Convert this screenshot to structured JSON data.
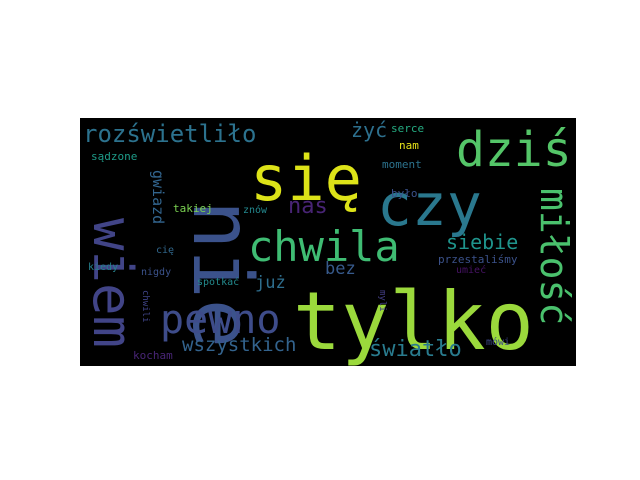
{
  "words": [
    {
      "text": "tylko",
      "color": "#9bd93c",
      "weight": 1.0
    },
    {
      "text": "nie",
      "color": "#3b528b",
      "weight": 0.98,
      "rotated": true
    },
    {
      "text": "się",
      "color": "#dde318",
      "weight": 0.95
    },
    {
      "text": "czy",
      "color": "#2a788e",
      "weight": 0.9
    },
    {
      "text": "wiem",
      "color": "#414487",
      "weight": 0.85,
      "rotated": true
    },
    {
      "text": "dziś",
      "color": "#54c568",
      "weight": 0.75
    },
    {
      "text": "chwila",
      "color": "#3fbc73",
      "weight": 0.7
    },
    {
      "text": "miłość",
      "color": "#4ac16d",
      "weight": 0.7,
      "rotated": true
    },
    {
      "text": "pewno",
      "color": "#3e4c8a",
      "weight": 0.65
    },
    {
      "text": "rozświetliło",
      "color": "#2c728e",
      "weight": 0.5
    },
    {
      "text": "światło",
      "color": "#297b8e",
      "weight": 0.45
    },
    {
      "text": "wszystkich",
      "color": "#33638d",
      "weight": 0.4
    },
    {
      "text": "nas",
      "color": "#482475",
      "weight": 0.4
    },
    {
      "text": "siebie",
      "color": "#1f948c",
      "weight": 0.4
    },
    {
      "text": "żyć",
      "color": "#2d708e",
      "weight": 0.35
    },
    {
      "text": "gwiazd",
      "color": "#32658e",
      "weight": 0.3,
      "rotated": true
    },
    {
      "text": "już",
      "color": "#2e6e8e",
      "weight": 0.3
    },
    {
      "text": "bez",
      "color": "#375a8c",
      "weight": 0.3
    },
    {
      "text": "sądzone",
      "color": "#1e9c89",
      "weight": 0.2
    },
    {
      "text": "serce",
      "color": "#25ac82",
      "weight": 0.2
    },
    {
      "text": "nam",
      "color": "#e7e419",
      "weight": 0.2
    },
    {
      "text": "moment",
      "color": "#2c738e",
      "weight": 0.2
    },
    {
      "text": "było",
      "color": "#3b528b",
      "weight": 0.2
    },
    {
      "text": "takiej",
      "color": "#7ad151",
      "weight": 0.2
    },
    {
      "text": "znów",
      "color": "#23888e",
      "weight": 0.2
    },
    {
      "text": "cię",
      "color": "#31688e",
      "weight": 0.2
    },
    {
      "text": "kiedy",
      "color": "#26828e",
      "weight": 0.2
    },
    {
      "text": "nigdy",
      "color": "#3b528b",
      "weight": 0.2
    },
    {
      "text": "spotkać",
      "color": "#238a8d",
      "weight": 0.2
    },
    {
      "text": "chwili",
      "color": "#404588",
      "weight": 0.2,
      "rotated": true
    },
    {
      "text": "myli",
      "color": "#433e85",
      "weight": 0.2,
      "rotated": true
    },
    {
      "text": "przestaliśmy",
      "color": "#3b528b",
      "weight": 0.2
    },
    {
      "text": "umieć",
      "color": "#471365",
      "weight": 0.2
    },
    {
      "text": "kocham",
      "color": "#482576",
      "weight": 0.2
    },
    {
      "text": "mówi",
      "color": "#3e4989",
      "weight": 0.2
    }
  ]
}
